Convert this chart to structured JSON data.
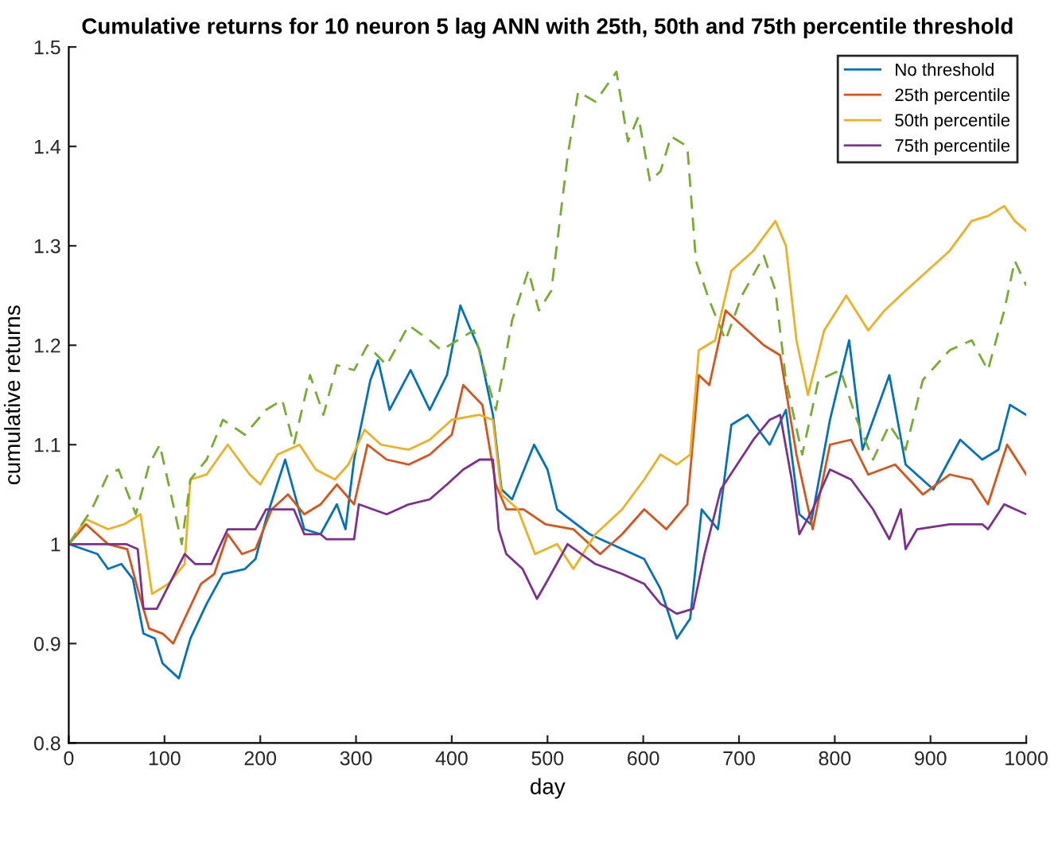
{
  "chart_data": {
    "type": "line",
    "title": "Cumulative returns for 10 neuron 5 lag ANN with 25th, 50th and 75th percentile threshold",
    "xlabel": "day",
    "ylabel": "cumulative returns",
    "xlim": [
      0,
      1000
    ],
    "xticks": [
      0,
      100,
      200,
      300,
      400,
      500,
      600,
      700,
      800,
      900,
      1000
    ],
    "ylim": [
      0.8,
      1.5
    ],
    "yticks": [
      0.8,
      0.9,
      1,
      1.1,
      1.2,
      1.3,
      1.4,
      1.5
    ],
    "grid": false,
    "legend": "top right",
    "line_style": "solid",
    "series": [
      {
        "name": "No threshold",
        "color": "#0072bd",
        "x": [
          0,
          30,
          41,
          55,
          67,
          78,
          90,
          98,
          115,
          127,
          144,
          161,
          184,
          195,
          206,
          226,
          246,
          263,
          280,
          289,
          298,
          315,
          323,
          335,
          357,
          377,
          395,
          409,
          429,
          443,
          452,
          463,
          486,
          500,
          510,
          544,
          578,
          601,
          618,
          635,
          649,
          661,
          678,
          692,
          709,
          732,
          749,
          763,
          775,
          795,
          815,
          829,
          857,
          874,
          903,
          931,
          954,
          971,
          983,
          1000
        ],
        "values": [
          1.0,
          0.99,
          0.975,
          0.98,
          0.965,
          0.91,
          0.905,
          0.88,
          0.865,
          0.905,
          0.94,
          0.97,
          0.975,
          0.985,
          1.025,
          1.085,
          1.015,
          1.01,
          1.04,
          1.015,
          1.085,
          1.165,
          1.185,
          1.135,
          1.175,
          1.135,
          1.17,
          1.24,
          1.195,
          1.13,
          1.055,
          1.045,
          1.1,
          1.075,
          1.035,
          1.01,
          0.995,
          0.985,
          0.955,
          0.905,
          0.925,
          1.035,
          1.015,
          1.12,
          1.13,
          1.1,
          1.135,
          1.03,
          1.02,
          1.125,
          1.205,
          1.095,
          1.17,
          1.08,
          1.055,
          1.105,
          1.085,
          1.095,
          1.14,
          1.13
        ]
      },
      {
        "name": "25th percentile",
        "color": "#d95319",
        "x": [
          0,
          18,
          41,
          61,
          72,
          84,
          98,
          109,
          121,
          138,
          152,
          166,
          181,
          195,
          212,
          229,
          246,
          263,
          280,
          298,
          312,
          332,
          355,
          377,
          400,
          412,
          432,
          446,
          457,
          475,
          498,
          527,
          555,
          578,
          601,
          624,
          646,
          658,
          669,
          686,
          703,
          726,
          743,
          760,
          777,
          795,
          817,
          835,
          863,
          892,
          920,
          943,
          960,
          980,
          1000
        ],
        "values": [
          1.0,
          1.02,
          1.0,
          0.995,
          0.955,
          0.915,
          0.91,
          0.9,
          0.925,
          0.96,
          0.97,
          1.01,
          0.99,
          0.995,
          1.035,
          1.05,
          1.03,
          1.04,
          1.06,
          1.04,
          1.1,
          1.085,
          1.08,
          1.09,
          1.11,
          1.16,
          1.14,
          1.06,
          1.035,
          1.035,
          1.02,
          1.015,
          0.99,
          1.01,
          1.035,
          1.015,
          1.04,
          1.17,
          1.16,
          1.235,
          1.22,
          1.2,
          1.19,
          1.09,
          1.015,
          1.1,
          1.105,
          1.07,
          1.08,
          1.05,
          1.07,
          1.065,
          1.04,
          1.1,
          1.07
        ]
      },
      {
        "name": "50th percentile",
        "color": "#edb120",
        "x": [
          0,
          18,
          41,
          58,
          75,
          87,
          104,
          121,
          127,
          144,
          166,
          189,
          200,
          218,
          241,
          258,
          278,
          292,
          309,
          326,
          355,
          377,
          400,
          429,
          443,
          452,
          469,
          487,
          510,
          527,
          550,
          578,
          601,
          618,
          635,
          649,
          658,
          675,
          692,
          715,
          738,
          749,
          760,
          772,
          789,
          812,
          835,
          852,
          874,
          897,
          920,
          943,
          960,
          977,
          988,
          1000
        ],
        "values": [
          1.0,
          1.025,
          1.015,
          1.02,
          1.03,
          0.95,
          0.96,
          0.98,
          1.065,
          1.07,
          1.1,
          1.07,
          1.06,
          1.09,
          1.1,
          1.075,
          1.065,
          1.08,
          1.115,
          1.1,
          1.095,
          1.105,
          1.125,
          1.13,
          1.125,
          1.05,
          1.035,
          0.99,
          1.0,
          0.975,
          1.01,
          1.035,
          1.065,
          1.09,
          1.08,
          1.09,
          1.195,
          1.205,
          1.275,
          1.295,
          1.325,
          1.3,
          1.205,
          1.15,
          1.215,
          1.25,
          1.215,
          1.235,
          1.255,
          1.275,
          1.295,
          1.325,
          1.33,
          1.34,
          1.325,
          1.315
        ]
      },
      {
        "name": "75th percentile",
        "color": "#7e2f8e",
        "x": [
          0,
          60,
          72,
          78,
          92,
          121,
          132,
          149,
          166,
          195,
          206,
          235,
          246,
          263,
          269,
          298,
          303,
          332,
          355,
          377,
          395,
          412,
          429,
          443,
          449,
          457,
          474,
          489,
          498,
          521,
          550,
          578,
          601,
          618,
          635,
          652,
          664,
          681,
          698,
          715,
          732,
          743,
          755,
          763,
          777,
          795,
          817,
          840,
          857,
          869,
          874,
          886,
          920,
          954,
          960,
          977,
          1000
        ],
        "values": [
          1.0,
          1.0,
          0.995,
          0.935,
          0.935,
          0.99,
          0.98,
          0.98,
          1.015,
          1.015,
          1.035,
          1.035,
          1.01,
          1.01,
          1.005,
          1.005,
          1.04,
          1.03,
          1.04,
          1.045,
          1.06,
          1.075,
          1.085,
          1.085,
          1.015,
          0.99,
          0.975,
          0.945,
          0.96,
          1.0,
          0.98,
          0.97,
          0.96,
          0.94,
          0.93,
          0.935,
          0.99,
          1.055,
          1.08,
          1.105,
          1.125,
          1.13,
          1.065,
          1.01,
          1.035,
          1.075,
          1.065,
          1.035,
          1.005,
          1.035,
          0.995,
          1.015,
          1.02,
          1.02,
          1.015,
          1.04,
          1.03
        ]
      },
      {
        "color": "#77ac30",
        "line_style": "dashed",
        "x": [
          0,
          24,
          41,
          52,
          64,
          70,
          84,
          95,
          109,
          118,
          127,
          144,
          161,
          184,
          206,
          223,
          235,
          252,
          266,
          280,
          298,
          312,
          332,
          355,
          377,
          389,
          406,
          423,
          437,
          446,
          452,
          463,
          480,
          491,
          504,
          521,
          532,
          550,
          572,
          584,
          595,
          607,
          618,
          629,
          646,
          655,
          669,
          686,
          703,
          726,
          738,
          749,
          766,
          783,
          806,
          823,
          840,
          857,
          874,
          892,
          920,
          943,
          960,
          977,
          988,
          1000
        ],
        "values": [
          1.0,
          1.035,
          1.07,
          1.075,
          1.045,
          1.03,
          1.08,
          1.1,
          1.04,
          1.0,
          1.065,
          1.085,
          1.125,
          1.11,
          1.135,
          1.145,
          1.1,
          1.17,
          1.13,
          1.18,
          1.175,
          1.2,
          1.18,
          1.22,
          1.205,
          1.195,
          1.205,
          1.215,
          1.165,
          1.135,
          1.165,
          1.225,
          1.275,
          1.235,
          1.255,
          1.39,
          1.455,
          1.445,
          1.475,
          1.405,
          1.43,
          1.365,
          1.375,
          1.41,
          1.4,
          1.285,
          1.245,
          1.205,
          1.25,
          1.29,
          1.255,
          1.165,
          1.09,
          1.165,
          1.175,
          1.125,
          1.085,
          1.12,
          1.095,
          1.165,
          1.195,
          1.205,
          1.175,
          1.235,
          1.285,
          1.26
        ]
      }
    ]
  }
}
